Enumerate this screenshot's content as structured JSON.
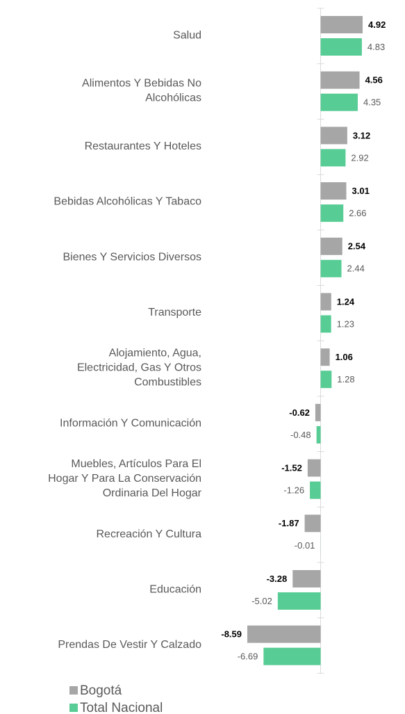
{
  "chart_data": {
    "type": "bar",
    "orientation": "horizontal",
    "categories": [
      "Salud",
      "Alimentos Y Bebidas No\nAlcohólicas",
      "Restaurantes Y Hoteles",
      "Bebidas Alcohólicas Y Tabaco",
      "Bienes Y Servicios Diversos",
      "Transporte",
      "Alojamiento, Agua,\nElectricidad, Gas Y Otros\nCombustibles",
      "Información Y Comunicación",
      "Muebles, Artículos Para El\nHogar Y Para La Conservación\nOrdinaria Del Hogar",
      "Recreación Y Cultura",
      "Educación",
      "Prendas De Vestir Y Calzado"
    ],
    "series": [
      {
        "name": "Bogotá",
        "color": "#a6a6a6",
        "values": [
          4.92,
          4.56,
          3.12,
          3.01,
          2.54,
          1.24,
          1.06,
          -0.62,
          -1.52,
          -1.87,
          -3.28,
          -8.59
        ]
      },
      {
        "name": "Total Nacional",
        "color": "#57cc94",
        "values": [
          4.83,
          4.35,
          2.92,
          2.66,
          2.44,
          1.23,
          1.28,
          -0.48,
          -1.26,
          -0.01,
          -5.02,
          -6.69
        ]
      }
    ],
    "legend": "bottom-left"
  }
}
